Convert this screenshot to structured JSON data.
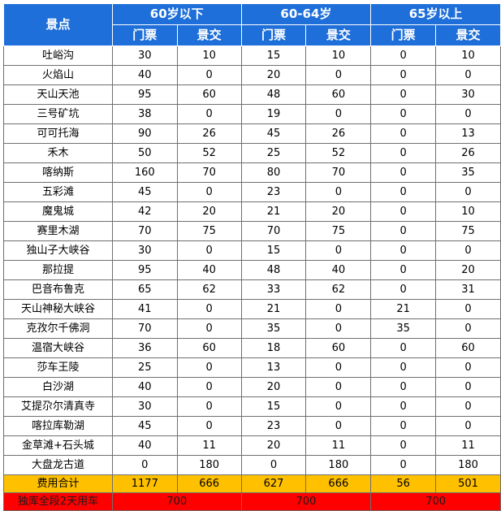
{
  "header": {
    "spot": "景点",
    "groups": [
      "60岁以下",
      "60-64岁",
      "65岁以上"
    ],
    "sub": [
      "门票",
      "景交",
      "门票",
      "景交",
      "门票",
      "景交"
    ]
  },
  "rows": [
    [
      "吐峪沟",
      "30",
      "10",
      "15",
      "10",
      "0",
      "10"
    ],
    [
      "火焰山",
      "40",
      "0",
      "20",
      "0",
      "0",
      "0"
    ],
    [
      "天山天池",
      "95",
      "60",
      "48",
      "60",
      "0",
      "30"
    ],
    [
      "三号矿坑",
      "38",
      "0",
      "19",
      "0",
      "0",
      "0"
    ],
    [
      "可可托海",
      "90",
      "26",
      "45",
      "26",
      "0",
      "13"
    ],
    [
      "禾木",
      "50",
      "52",
      "25",
      "52",
      "0",
      "26"
    ],
    [
      "喀纳斯",
      "160",
      "70",
      "80",
      "70",
      "0",
      "35"
    ],
    [
      "五彩滩",
      "45",
      "0",
      "23",
      "0",
      "0",
      "0"
    ],
    [
      "魔鬼城",
      "42",
      "20",
      "21",
      "20",
      "0",
      "10"
    ],
    [
      "赛里木湖",
      "70",
      "75",
      "70",
      "75",
      "0",
      "75"
    ],
    [
      "独山子大峡谷",
      "30",
      "0",
      "15",
      "0",
      "0",
      "0"
    ],
    [
      "那拉提",
      "95",
      "40",
      "48",
      "40",
      "0",
      "20"
    ],
    [
      "巴音布鲁克",
      "65",
      "62",
      "33",
      "62",
      "0",
      "31"
    ],
    [
      "天山神秘大峡谷",
      "41",
      "0",
      "21",
      "0",
      "21",
      "0"
    ],
    [
      "克孜尔千佛洞",
      "70",
      "0",
      "35",
      "0",
      "35",
      "0"
    ],
    [
      "温宿大峡谷",
      "36",
      "60",
      "18",
      "60",
      "0",
      "60"
    ],
    [
      "莎车王陵",
      "25",
      "0",
      "13",
      "0",
      "0",
      "0"
    ],
    [
      "白沙湖",
      "40",
      "0",
      "20",
      "0",
      "0",
      "0"
    ],
    [
      "艾提尕尔清真寺",
      "30",
      "0",
      "15",
      "0",
      "0",
      "0"
    ],
    [
      "喀拉库勒湖",
      "45",
      "0",
      "23",
      "0",
      "0",
      "0"
    ],
    [
      "金草滩+石头城",
      "40",
      "11",
      "20",
      "11",
      "0",
      "11"
    ],
    [
      "大盘龙古道",
      "0",
      "180",
      "0",
      "180",
      "0",
      "180"
    ]
  ],
  "total": [
    "费用合计",
    "1177",
    "666",
    "627",
    "666",
    "56",
    "501"
  ],
  "car": [
    "独库全段2天用车",
    "700",
    "700",
    "700"
  ],
  "colors": {
    "header_bg": "#1e6fd9",
    "total_bg": "#ffc000",
    "car_bg": "#ff0000"
  }
}
